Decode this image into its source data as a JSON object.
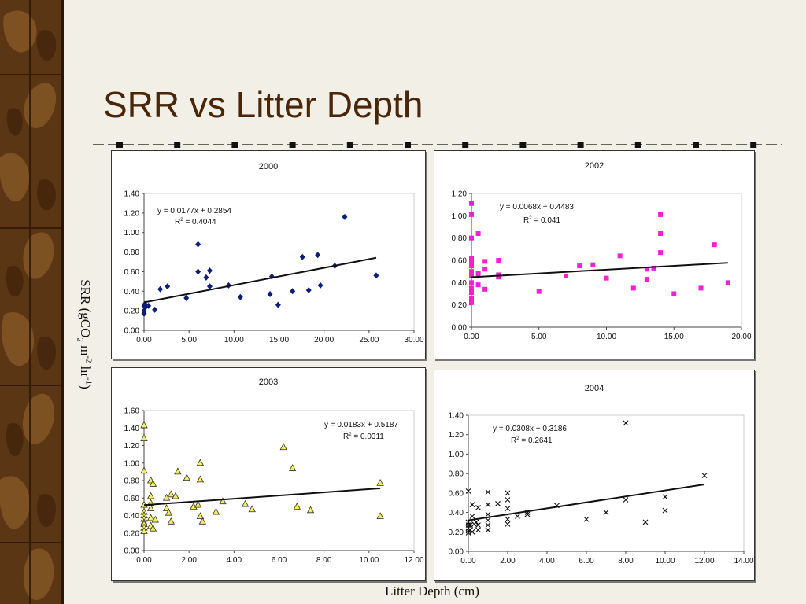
{
  "slide": {
    "title": "SRR vs Litter Depth",
    "y_axis_label_prefix": "SRR (gCO",
    "y_axis_label_sub": "2",
    "y_axis_label_mid": " m",
    "y_axis_label_sup1": "-2",
    "y_axis_label_mid2": " hr",
    "y_axis_label_sup2": "-1",
    "y_axis_label_suffix": ")",
    "x_axis_label": "Litter Depth (cm)",
    "colors": {
      "background": "#f2efe6",
      "title": "#4a2608",
      "sidebar": "#4a2a10"
    }
  },
  "chart_data": [
    {
      "type": "scatter",
      "title": "2000",
      "xlabel": "",
      "ylabel": "",
      "xlim": [
        0,
        30
      ],
      "ylim": [
        0,
        1.4
      ],
      "xticks": [
        "0.00",
        "5.00",
        "10.00",
        "15.00",
        "20.00",
        "25.00",
        "30.00"
      ],
      "yticks": [
        "0.00",
        "0.20",
        "0.40",
        "0.60",
        "0.80",
        "1.00",
        "1.20",
        "1.40"
      ],
      "marker": "diamond",
      "color": "#0b1f7a",
      "equation": "y = 0.0177x + 0.2854",
      "r2_label": "R",
      "r2_value": " = 0.4044",
      "trend": {
        "slope": 0.0177,
        "intercept": 0.2854,
        "x_range": [
          0,
          25.8
        ]
      },
      "x": [
        0.0,
        0.0,
        0.0,
        0.1,
        0.2,
        0.5,
        1.2,
        1.8,
        2.6,
        4.7,
        6.0,
        6.0,
        6.9,
        7.3,
        7.3,
        9.4,
        10.7,
        14.0,
        14.2,
        14.9,
        16.5,
        17.6,
        18.3,
        19.3,
        19.6,
        21.2,
        22.3,
        25.8
      ],
      "y": [
        0.17,
        0.2,
        0.25,
        0.27,
        0.24,
        0.25,
        0.21,
        0.42,
        0.45,
        0.33,
        0.6,
        0.88,
        0.54,
        0.61,
        0.45,
        0.46,
        0.34,
        0.37,
        0.55,
        0.26,
        0.4,
        0.75,
        0.41,
        0.77,
        0.46,
        0.66,
        1.16,
        0.56
      ]
    },
    {
      "type": "scatter",
      "title": "2002",
      "xlabel": "",
      "ylabel": "",
      "xlim": [
        0,
        20
      ],
      "ylim": [
        0,
        1.2
      ],
      "xticks": [
        "0.00",
        "5.00",
        "10.00",
        "15.00",
        "20.00"
      ],
      "yticks": [
        "0.00",
        "0.20",
        "0.40",
        "0.60",
        "0.80",
        "1.00",
        "1.20"
      ],
      "marker": "square",
      "color": "#ee22d4",
      "equation": "y = 0.0068x + 0.4483",
      "r2_label": "R",
      "r2_value": " = 0.041",
      "trend": {
        "slope": 0.0068,
        "intercept": 0.4483,
        "x_range": [
          0,
          19
        ]
      },
      "x": [
        0.0,
        0.0,
        0.0,
        0.0,
        0.0,
        0.0,
        0.0,
        0.0,
        0.0,
        0.0,
        0.0,
        0.0,
        0.0,
        0.5,
        0.5,
        0.5,
        1.0,
        1.0,
        1.0,
        2.0,
        2.0,
        2.0,
        5.0,
        7.0,
        8.0,
        9.0,
        10.0,
        11.0,
        12.0,
        13.0,
        13.0,
        13.5,
        14.0,
        14.0,
        14.0,
        15.0,
        17.0,
        18.0,
        19.0
      ],
      "y": [
        1.11,
        1.01,
        0.8,
        0.62,
        0.58,
        0.55,
        0.5,
        0.46,
        0.4,
        0.35,
        0.31,
        0.26,
        0.22,
        0.84,
        0.48,
        0.38,
        0.59,
        0.52,
        0.34,
        0.6,
        0.47,
        0.45,
        0.32,
        0.46,
        0.55,
        0.56,
        0.44,
        0.64,
        0.35,
        0.52,
        0.43,
        0.53,
        1.01,
        0.84,
        0.67,
        0.3,
        0.35,
        0.74,
        0.4
      ]
    },
    {
      "type": "scatter",
      "title": "2003",
      "xlabel": "",
      "ylabel": "",
      "xlim": [
        0,
        12
      ],
      "ylim": [
        0,
        1.6
      ],
      "xticks": [
        "0.00",
        "2.00",
        "4.00",
        "6.00",
        "8.00",
        "10.00",
        "12.00"
      ],
      "yticks": [
        "0.00",
        "0.20",
        "0.40",
        "0.60",
        "0.80",
        "1.00",
        "1.20",
        "1.40",
        "1.60"
      ],
      "marker": "triangle",
      "color": "#f4ef5a",
      "equation": "y = 0.0183x + 0.5187",
      "r2_label": "R",
      "r2_value": " = 0.0311",
      "trend": {
        "slope": 0.0183,
        "intercept": 0.5187,
        "x_range": [
          0,
          10.5
        ]
      },
      "x": [
        0.0,
        0.0,
        0.0,
        0.0,
        0.0,
        0.0,
        0.0,
        0.0,
        0.0,
        0.0,
        0.0,
        0.3,
        0.3,
        0.3,
        0.3,
        0.3,
        0.3,
        0.4,
        0.4,
        0.5,
        1.0,
        1.0,
        1.1,
        1.2,
        1.2,
        1.4,
        1.5,
        1.9,
        2.2,
        2.4,
        2.5,
        2.5,
        2.5,
        2.6,
        3.2,
        3.5,
        4.5,
        4.8,
        6.2,
        6.6,
        6.8,
        7.4,
        10.5,
        10.5
      ],
      "y": [
        1.43,
        1.28,
        0.91,
        0.52,
        0.44,
        0.4,
        0.36,
        0.32,
        0.3,
        0.26,
        0.22,
        0.8,
        0.62,
        0.54,
        0.48,
        0.37,
        0.28,
        0.76,
        0.25,
        0.35,
        0.6,
        0.48,
        0.43,
        0.64,
        0.33,
        0.62,
        0.9,
        0.83,
        0.5,
        0.52,
        1.0,
        0.81,
        0.39,
        0.33,
        0.44,
        0.56,
        0.53,
        0.47,
        1.18,
        0.94,
        0.5,
        0.46,
        0.77,
        0.39
      ]
    },
    {
      "type": "scatter",
      "title": "2004",
      "xlabel": "",
      "ylabel": "",
      "xlim": [
        0,
        14
      ],
      "ylim": [
        0,
        1.4
      ],
      "xticks": [
        "0.00",
        "2.00",
        "4.00",
        "6.00",
        "8.00",
        "10.00",
        "12.00",
        "14.00"
      ],
      "yticks": [
        "0.00",
        "0.20",
        "0.40",
        "0.60",
        "0.80",
        "1.00",
        "1.20",
        "1.40"
      ],
      "marker": "x",
      "color": "#111111",
      "equation": "y = 0.0308x + 0.3186",
      "r2_label": "R",
      "r2_value": " = 0.2641",
      "trend": {
        "slope": 0.0308,
        "intercept": 0.3186,
        "x_range": [
          0,
          12
        ]
      },
      "x": [
        0.0,
        0.0,
        0.0,
        0.0,
        0.0,
        0.0,
        0.1,
        0.1,
        0.2,
        0.2,
        0.2,
        0.3,
        0.4,
        0.5,
        0.5,
        0.5,
        1.0,
        1.0,
        1.0,
        1.0,
        1.0,
        1.0,
        1.5,
        2.0,
        2.0,
        2.0,
        2.0,
        2.0,
        2.5,
        3.0,
        3.0,
        4.5,
        6.0,
        7.0,
        8.0,
        8.0,
        9.0,
        10.0,
        10.0,
        12.0
      ],
      "y": [
        0.62,
        0.3,
        0.27,
        0.24,
        0.21,
        0.19,
        0.27,
        0.22,
        0.48,
        0.36,
        0.2,
        0.28,
        0.3,
        0.45,
        0.27,
        0.22,
        0.61,
        0.48,
        0.38,
        0.32,
        0.27,
        0.22,
        0.49,
        0.6,
        0.53,
        0.44,
        0.33,
        0.28,
        0.36,
        0.4,
        0.38,
        0.47,
        0.33,
        0.4,
        1.32,
        0.53,
        0.3,
        0.56,
        0.42,
        0.78
      ]
    }
  ]
}
